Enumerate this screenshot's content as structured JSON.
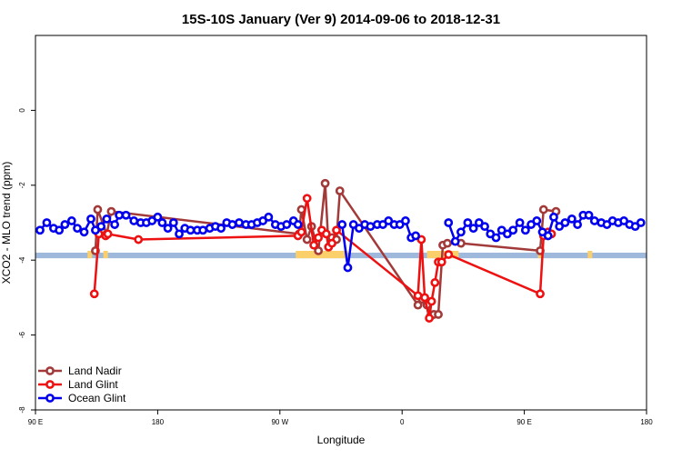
{
  "chart_data": {
    "type": "line",
    "title": "15S-10S January (Ver 9)   2014-09-06 to 2018-12-31",
    "xlabel": "Longitude",
    "ylabel": "XCO2 - MLO trend (ppm)",
    "xlim": [
      -90,
      180
    ],
    "ylim": [
      -8,
      2
    ],
    "x_ticks": [
      {
        "value": -90,
        "label": "90 E"
      },
      {
        "value": -36,
        "label": "180"
      },
      {
        "value": 18,
        "label": "90 W"
      },
      {
        "value": 72,
        "label": "0"
      },
      {
        "value": 126,
        "label": "90 E"
      },
      {
        "value": 180,
        "label": "180"
      }
    ],
    "y_ticks": [
      {
        "value": 0,
        "label": "0"
      },
      {
        "value": -2,
        "label": "-2"
      },
      {
        "value": -4,
        "label": "-4"
      },
      {
        "value": -6,
        "label": "-6"
      },
      {
        "value": -8,
        "label": "-8"
      }
    ],
    "grid": false,
    "legend_position": "bottom-left",
    "background_band": {
      "y_range": [
        -3.95,
        -3.8
      ],
      "ocean_color": "#9fb9dd",
      "land_color": "#fbd06a",
      "land_segments": [
        [
          -67,
          -65
        ],
        [
          -60,
          -58
        ],
        [
          25,
          48
        ],
        [
          83,
          97
        ],
        [
          132,
          134
        ],
        [
          154,
          156
        ]
      ]
    },
    "series": [
      {
        "name": "Land Nadir",
        "color": "#a33a3a",
        "x": [
          -63.5,
          -62.5,
          -58.5,
          -56.5,
          26.5,
          27.5,
          30,
          32,
          35,
          38,
          39.5,
          41,
          43,
          44.5,
          79,
          81,
          83,
          84.5,
          86,
          88,
          90,
          92,
          98,
          133,
          134.5,
          140
        ],
        "y": [
          -3.75,
          -2.65,
          -3.3,
          -2.7,
          -3.3,
          -2.65,
          -3.45,
          -3.1,
          -3.75,
          -1.95,
          -3.65,
          -3.4,
          -3.45,
          -2.15,
          -5.2,
          -5.05,
          -5.2,
          -5.5,
          -5.45,
          -5.45,
          -3.6,
          -3.55,
          -3.55,
          -3.75,
          -2.65,
          -2.7
        ]
      },
      {
        "name": "Land Glint",
        "color": "#ee1111",
        "x": [
          -64,
          -62,
          -59,
          -58,
          -44.5,
          26,
          27.5,
          30,
          33,
          35,
          36.5,
          38.5,
          39.5,
          41,
          43,
          79,
          80.5,
          82,
          84,
          85,
          86.5,
          88,
          89.5,
          92.5,
          133,
          134.5,
          136.5,
          138
        ],
        "y": [
          -4.9,
          -3.3,
          -3.35,
          -3.3,
          -3.45,
          -3.35,
          -3.25,
          -2.35,
          -3.6,
          -3.4,
          -3.2,
          -3.3,
          -3.65,
          -3.55,
          -3.2,
          -4.95,
          -3.45,
          -5.0,
          -5.55,
          -5.1,
          -4.6,
          -4.05,
          -4.05,
          -3.85,
          -4.9,
          -3.35,
          -3.25,
          -3.3
        ]
      },
      {
        "name": "Ocean Glint",
        "color": "#0000ee",
        "x": [
          -88,
          -85,
          -82,
          -79.5,
          -77,
          -74,
          -71.5,
          -68.5,
          -65.5,
          -63.5,
          -61,
          -58.5,
          -55,
          -53,
          -50,
          -46.5,
          -43.5,
          -41,
          -38.5,
          -36,
          -34,
          -31.5,
          -29,
          -26.5,
          -24,
          -21.5,
          -18.5,
          -16,
          -13,
          -10.5,
          -8,
          -5.5,
          -3,
          0,
          3,
          5.5,
          8,
          10.5,
          13,
          16,
          18.5,
          21,
          24,
          26,
          45.5,
          48,
          50.5,
          53,
          55.5,
          58,
          61,
          63.5,
          66,
          68.5,
          71,
          73.5,
          76,
          78,
          92.5,
          95.5,
          98,
          101,
          103.5,
          106,
          108.5,
          111,
          113.5,
          116,
          118.5,
          121,
          124,
          126.5,
          129,
          131.5,
          134,
          136.5,
          139,
          141.5,
          144,
          147,
          149.5,
          152,
          154.5,
          157,
          160,
          162.5,
          165,
          167.5,
          170,
          172.5,
          175,
          177.5
        ],
        "y": [
          -3.2,
          -3.0,
          -3.15,
          -3.2,
          -3.05,
          -2.95,
          -3.15,
          -3.25,
          -2.9,
          -3.2,
          -3.1,
          -2.9,
          -3.05,
          -2.8,
          -2.8,
          -2.95,
          -3.0,
          -3.0,
          -2.95,
          -2.85,
          -3.0,
          -3.15,
          -3.0,
          -3.3,
          -3.15,
          -3.2,
          -3.2,
          -3.2,
          -3.15,
          -3.1,
          -3.15,
          -3.0,
          -3.05,
          -3.0,
          -3.05,
          -3.05,
          -3.0,
          -2.95,
          -2.85,
          -3.05,
          -3.1,
          -3.05,
          -2.95,
          -3.05,
          -3.05,
          -4.2,
          -3.05,
          -3.15,
          -3.05,
          -3.1,
          -3.05,
          -3.05,
          -2.95,
          -3.05,
          -3.05,
          -2.95,
          -3.4,
          -3.35,
          -3.0,
          -3.5,
          -3.25,
          -3.0,
          -3.15,
          -3.0,
          -3.1,
          -3.3,
          -3.4,
          -3.2,
          -3.3,
          -3.2,
          -3.0,
          -3.2,
          -3.05,
          -2.95,
          -3.25,
          -3.35,
          -2.85,
          -3.1,
          -3.0,
          -2.9,
          -3.05,
          -2.8,
          -2.8,
          -2.95,
          -3.0,
          -3.05,
          -2.95,
          -3.0,
          -2.95,
          -3.05,
          -3.1,
          -3.0
        ],
        "breaks_after_index": [
          43,
          57
        ]
      }
    ]
  }
}
